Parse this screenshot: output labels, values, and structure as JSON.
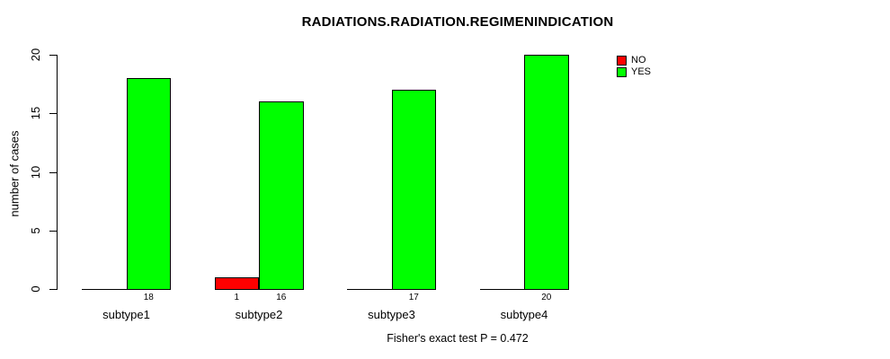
{
  "chart_data": {
    "type": "bar",
    "title": "RADIATIONS.RADIATION.REGIMENINDICATION",
    "ylabel": "number of cases",
    "xlabel": "",
    "ylim": [
      0,
      20
    ],
    "yticks": [
      0,
      5,
      10,
      15,
      20
    ],
    "grid": false,
    "legend_position": "top-right",
    "categories": [
      "subtype1",
      "subtype2",
      "subtype3",
      "subtype4"
    ],
    "series": [
      {
        "name": "NO",
        "color": "#ff0000",
        "values": [
          0,
          1,
          0,
          0
        ],
        "labels": [
          "",
          "1",
          "",
          ""
        ]
      },
      {
        "name": "YES",
        "color": "#00ff00",
        "values": [
          18,
          16,
          17,
          20
        ],
        "labels": [
          "18",
          "16",
          "17",
          "20"
        ]
      }
    ],
    "annotation": "Fisher's exact test P = 0.472"
  },
  "colors": {
    "axis": "#000000",
    "background": "#ffffff",
    "no": "#ff0000",
    "yes": "#00ff00"
  }
}
